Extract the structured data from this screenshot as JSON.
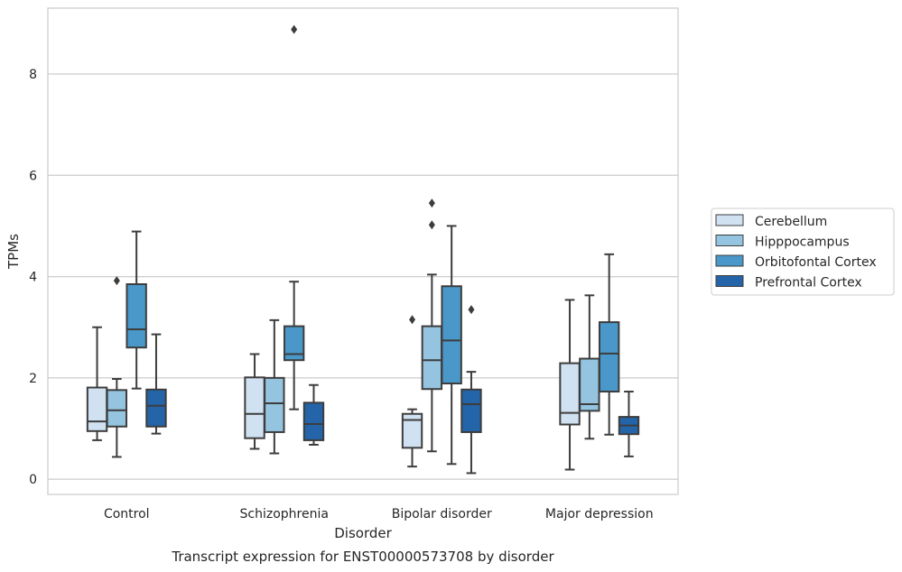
{
  "caption": "Transcript expression for ENST00000573708 by disorder",
  "chart_data": {
    "type": "box",
    "xlabel": "Disorder",
    "ylabel": "TPMs",
    "ylim": [
      -0.3,
      9.3
    ],
    "yticks": [
      0,
      2,
      4,
      6,
      8
    ],
    "grid": "horizontal",
    "legend_position": "right",
    "categories": [
      "Control",
      "Schizophrenia",
      "Bipolar disorder",
      "Major depression"
    ],
    "series": [
      {
        "name": "Cerebellum",
        "color": "#d0e1f2",
        "boxes": [
          {
            "whislo": 0.77,
            "q1": 0.95,
            "median": 1.14,
            "q3": 1.81,
            "whishi": 3.0,
            "fliers": []
          },
          {
            "whislo": 0.6,
            "q1": 0.81,
            "median": 1.29,
            "q3": 2.01,
            "whishi": 2.47,
            "fliers": []
          },
          {
            "whislo": 0.25,
            "q1": 0.62,
            "median": 1.17,
            "q3": 1.29,
            "whishi": 1.38,
            "fliers": [
              3.15
            ]
          },
          {
            "whislo": 0.19,
            "q1": 1.08,
            "median": 1.31,
            "q3": 2.29,
            "whishi": 3.54,
            "fliers": []
          }
        ]
      },
      {
        "name": "Hipppocampus",
        "color": "#94c4df",
        "boxes": [
          {
            "whislo": 0.44,
            "q1": 1.04,
            "median": 1.36,
            "q3": 1.76,
            "whishi": 1.98,
            "fliers": [
              3.92
            ]
          },
          {
            "whislo": 0.51,
            "q1": 0.93,
            "median": 1.5,
            "q3": 2.0,
            "whishi": 3.14,
            "fliers": []
          },
          {
            "whislo": 0.55,
            "q1": 1.78,
            "median": 2.35,
            "q3": 3.02,
            "whishi": 4.04,
            "fliers": [
              5.02,
              5.45
            ]
          },
          {
            "whislo": 0.8,
            "q1": 1.35,
            "median": 1.48,
            "q3": 2.38,
            "whishi": 3.63,
            "fliers": []
          }
        ]
      },
      {
        "name": "Orbitofontal Cortex",
        "color": "#4a98c9",
        "boxes": [
          {
            "whislo": 1.79,
            "q1": 2.6,
            "median": 2.96,
            "q3": 3.85,
            "whishi": 4.89,
            "fliers": []
          },
          {
            "whislo": 1.38,
            "q1": 2.35,
            "median": 2.47,
            "q3": 3.02,
            "whishi": 3.9,
            "fliers": [
              8.88
            ]
          },
          {
            "whislo": 0.3,
            "q1": 1.89,
            "median": 2.74,
            "q3": 3.81,
            "whishi": 5.0,
            "fliers": []
          },
          {
            "whislo": 0.88,
            "q1": 1.73,
            "median": 2.48,
            "q3": 3.1,
            "whishi": 4.44,
            "fliers": []
          }
        ]
      },
      {
        "name": "Prefrontal Cortex",
        "color": "#2464a8",
        "boxes": [
          {
            "whislo": 0.9,
            "q1": 1.04,
            "median": 1.45,
            "q3": 1.77,
            "whishi": 2.86,
            "fliers": []
          },
          {
            "whislo": 0.68,
            "q1": 0.77,
            "median": 1.09,
            "q3": 1.51,
            "whishi": 1.86,
            "fliers": []
          },
          {
            "whislo": 0.12,
            "q1": 0.93,
            "median": 1.48,
            "q3": 1.77,
            "whishi": 2.12,
            "fliers": [
              3.35
            ]
          },
          {
            "whislo": 0.45,
            "q1": 0.89,
            "median": 1.06,
            "q3": 1.23,
            "whishi": 1.73,
            "fliers": []
          }
        ]
      }
    ]
  }
}
